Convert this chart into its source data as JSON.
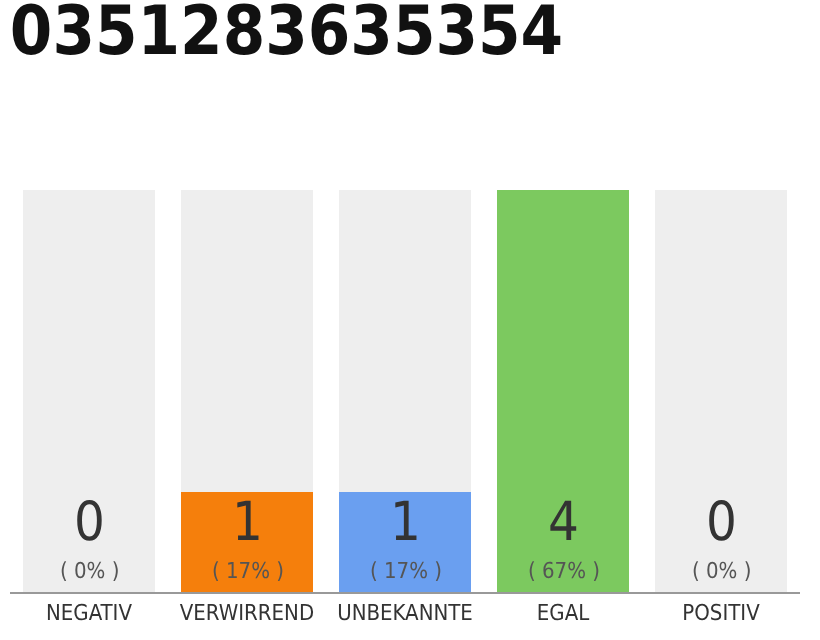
{
  "chart_data": {
    "type": "bar",
    "title": "0351283635354",
    "categories": [
      "NEGATIV",
      "VERWIRREND",
      "UNBEKANNTE",
      "EGAL",
      "POSITIV"
    ],
    "ylim": [
      0,
      4
    ],
    "stacked": true,
    "series": [
      {
        "colors": [
          "#eeeeee",
          "#f57f0c",
          "#6a9ff0",
          "#7cc95f",
          "#eeeeee"
        ],
        "values": [
          0,
          1,
          1,
          4,
          0
        ],
        "value_labels": [
          null,
          "1",
          "1",
          "4",
          null
        ]
      },
      {
        "color": "#eeeeee",
        "values": [
          4,
          3,
          3,
          0,
          4
        ]
      }
    ],
    "annotations": [
      {
        "text": "0",
        "x": "NEGATIV",
        "y": 0
      },
      {
        "text": "0",
        "x": "POSITIV",
        "y": 0
      },
      {
        "text": "( 0% )",
        "x": "NEGATIV",
        "y": 0
      },
      {
        "text": "( 17% )",
        "x": "VERWIRREND",
        "y": 0
      },
      {
        "text": "( 17% )",
        "x": "UNBEKANNTE",
        "y": 0
      },
      {
        "text": "( 67% )",
        "x": "EGAL",
        "y": 0
      },
      {
        "text": "( 0% )",
        "x": "POSITIV",
        "y": 0
      }
    ],
    "grid": false
  }
}
